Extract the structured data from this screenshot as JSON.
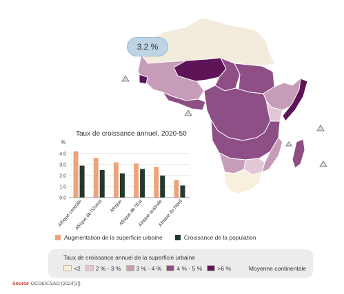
{
  "map": {
    "continental_value": "3.2 %",
    "colors": {
      "none": "#f3ecdc",
      "lt2": "#f7f0dc",
      "2to3": "#e3c7d6",
      "3to4": "#c69cb9",
      "4to5": "#8d4f86",
      "gt6": "#5e1557",
      "border": "#ffffff",
      "continental": "#bcd4e3",
      "bar_surface": "#eba47d",
      "bar_population": "#23382e"
    }
  },
  "chart_data": {
    "type": "bar",
    "title": "Taux de croissance annuel, 2020-50",
    "ylabel": "%",
    "ylim": [
      0,
      4.5
    ],
    "yticks": [
      "0.0",
      "1.0",
      "2.0",
      "3.0",
      "4.0"
    ],
    "categories": [
      "Afrique centrale",
      "Afrique de l'Ouest",
      "Afrique",
      "Afrique de l'Est",
      "Afrique australe",
      "Afrique du Nord"
    ],
    "series": [
      {
        "name": "Augmentation de la superficie urbaine",
        "values": [
          4.2,
          3.6,
          3.2,
          3.1,
          2.8,
          1.6
        ]
      },
      {
        "name": "Croissance de la population",
        "values": [
          2.9,
          2.5,
          2.2,
          2.6,
          2.0,
          1.1
        ]
      }
    ]
  },
  "legend": {
    "surface": "Augmentation de la superficie urbaine",
    "population": "Croissance de la population"
  },
  "scale": {
    "title": "Taux de croissance annuel de la superficie urbaine",
    "items": [
      "<2",
      "2 % - 3 %",
      "3 % - 4 %",
      "4 % - 5 %",
      ">6 %"
    ],
    "continental": "Moyenne continentale"
  },
  "source": {
    "label": "Source",
    "text": "OCDE/CSAO (2024[1])"
  }
}
